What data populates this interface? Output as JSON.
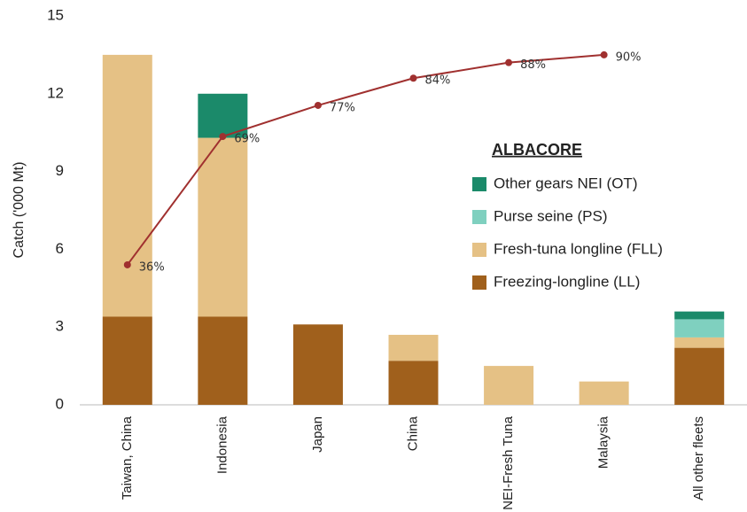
{
  "chart_data": {
    "type": "bar",
    "stacked": true,
    "y_label": "Catch ('000 Mt)",
    "legend_title": "ALBACORE",
    "categories": [
      "Taiwan, China",
      "Indonesia",
      "Japan",
      "China",
      "NEI-Fresh Tuna",
      "Malaysia",
      "All other fleets"
    ],
    "series": [
      {
        "name": "Freezing-longline (LL)",
        "color": "#a0601c",
        "values": [
          3.4,
          3.4,
          3.1,
          1.7,
          0,
          0,
          2.2
        ]
      },
      {
        "name": "Fresh-tuna longline (FLL)",
        "color": "#e5c185",
        "values": [
          10.1,
          6.9,
          0,
          1.0,
          1.5,
          0.9,
          0.4
        ]
      },
      {
        "name": "Purse seine (PS)",
        "color": "#7fd0bf",
        "values": [
          0,
          0,
          0,
          0,
          0,
          0,
          0.7
        ]
      },
      {
        "name": "Other gears NEI (OT)",
        "color": "#1b8a6a",
        "values": [
          0,
          1.7,
          0,
          0,
          0,
          0,
          0.3
        ]
      },
      {
        "type": "line",
        "axis": "y2",
        "color": "#a0302f",
        "values": [
          36,
          69,
          77,
          84,
          88,
          90,
          null
        ],
        "value_labels": [
          "36%",
          "69%",
          "77%",
          "84%",
          "88%",
          "90%",
          null
        ]
      }
    ],
    "ylim": [
      0,
      15
    ],
    "yticks": [
      0,
      3,
      6,
      9,
      12,
      15
    ],
    "y2lim": [
      0,
      100
    ],
    "grid": false,
    "legend": "right"
  }
}
